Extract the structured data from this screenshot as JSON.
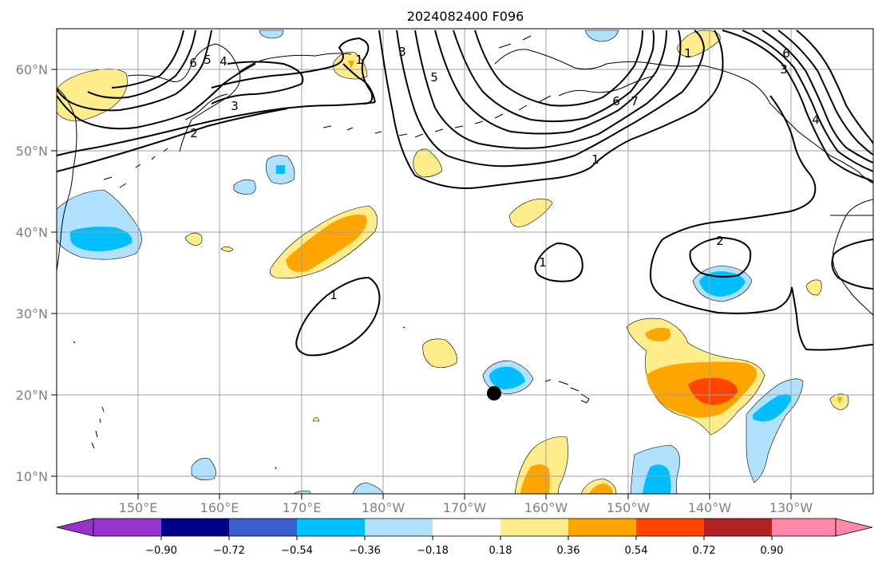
{
  "title": "2024082400 F096",
  "lat_labels": [
    "60°N",
    "50°N",
    "40°N",
    "30°N",
    "20°N",
    "10°N"
  ],
  "lon_labels": [
    "150°E",
    "160°E",
    "170°E",
    "180°W",
    "170°W",
    "160°W",
    "150°W",
    "140°W",
    "130°W"
  ],
  "colorbar": {
    "tick_labels": [
      "−0.90",
      "−0.72",
      "−0.54",
      "−0.36",
      "−0.18",
      "0.18",
      "0.36",
      "0.54",
      "0.72",
      "0.90"
    ],
    "colors": [
      "#9932cc",
      "#00008b",
      "#3a5fcd",
      "#00bfff",
      "#b0e2ff",
      "#ffffff",
      "#ffec8b",
      "#ffa500",
      "#ff4500",
      "#b22222",
      "#ff88aa"
    ]
  },
  "contour_labels": [
    "6",
    "5",
    "4",
    "3",
    "2",
    "1",
    "3",
    "5",
    "6",
    "7",
    "1",
    "6",
    "3",
    "4",
    "1",
    "2",
    "1",
    "1"
  ],
  "marker": "filled-black-circle",
  "colors": {
    "pale_blue": "#b0e2ff",
    "blue": "#00bfff",
    "pale_yellow": "#ffec8b",
    "orange": "#ffa500",
    "red_orange": "#ff4500"
  }
}
